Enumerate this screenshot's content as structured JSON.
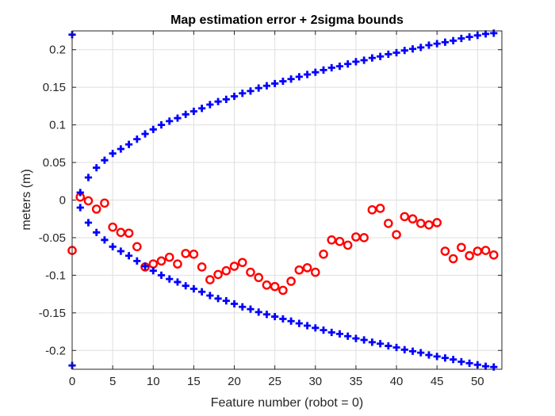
{
  "chart_data": {
    "type": "scatter",
    "title": "Map estimation error + 2sigma bounds",
    "xlabel": "Feature number (robot = 0)",
    "ylabel": "meters (m)",
    "xlim": [
      0,
      53
    ],
    "ylim": [
      -0.225,
      0.225
    ],
    "grid": true,
    "x_ticks": [
      0,
      5,
      10,
      15,
      20,
      25,
      30,
      35,
      40,
      45,
      50
    ],
    "y_ticks": [
      -0.2,
      -0.15,
      -0.1,
      -0.05,
      0,
      0.05,
      0.1,
      0.15,
      0.2
    ],
    "x_tick_labels": [
      "0",
      "5",
      "10",
      "15",
      "20",
      "25",
      "30",
      "35",
      "40",
      "45",
      "50"
    ],
    "y_tick_labels": [
      "-0.2",
      "-0.15",
      "-0.1",
      "-0.05",
      "0",
      "0.05",
      "0.1",
      "0.15",
      "0.2"
    ],
    "series": [
      {
        "marker": "circle",
        "color": "#ff0000",
        "x": [
          0,
          1,
          2,
          3,
          4,
          5,
          6,
          7,
          8,
          9,
          10,
          11,
          12,
          13,
          14,
          15,
          16,
          17,
          18,
          19,
          20,
          21,
          22,
          23,
          24,
          25,
          26,
          27,
          28,
          29,
          30,
          31,
          32,
          33,
          34,
          35,
          36,
          37,
          38,
          39,
          40,
          41,
          42,
          43,
          44,
          45,
          46,
          47,
          48,
          49,
          50,
          51,
          52
        ],
        "y": [
          -0.067,
          0.004,
          -0.001,
          -0.012,
          -0.004,
          -0.036,
          -0.043,
          -0.044,
          -0.062,
          -0.089,
          -0.085,
          -0.081,
          -0.076,
          -0.085,
          -0.071,
          -0.072,
          -0.089,
          -0.106,
          -0.099,
          -0.094,
          -0.088,
          -0.083,
          -0.096,
          -0.103,
          -0.113,
          -0.115,
          -0.12,
          -0.108,
          -0.093,
          -0.09,
          -0.096,
          -0.072,
          -0.053,
          -0.055,
          -0.06,
          -0.049,
          -0.05,
          -0.013,
          -0.011,
          -0.031,
          -0.046,
          -0.022,
          -0.025,
          -0.031,
          -0.033,
          -0.03,
          -0.068,
          -0.078,
          -0.063,
          -0.074,
          -0.068,
          -0.067,
          -0.073
        ]
      },
      {
        "marker": "plus",
        "color": "#0000ff",
        "x": [
          0,
          1,
          2,
          3,
          4,
          5,
          6,
          7,
          8,
          9,
          10,
          11,
          12,
          13,
          14,
          15,
          16,
          17,
          18,
          19,
          20,
          21,
          22,
          23,
          24,
          25,
          26,
          27,
          28,
          29,
          30,
          31,
          32,
          33,
          34,
          35,
          36,
          37,
          38,
          39,
          40,
          41,
          42,
          43,
          44,
          45,
          46,
          47,
          48,
          49,
          50,
          51,
          52
        ],
        "y": [
          0.22,
          0.01,
          0.03,
          0.043,
          0.053,
          0.062,
          0.068,
          0.074,
          0.081,
          0.088,
          0.094,
          0.1,
          0.105,
          0.109,
          0.114,
          0.118,
          0.122,
          0.127,
          0.131,
          0.134,
          0.138,
          0.142,
          0.145,
          0.149,
          0.152,
          0.155,
          0.158,
          0.161,
          0.164,
          0.167,
          0.17,
          0.173,
          0.176,
          0.178,
          0.181,
          0.184,
          0.186,
          0.189,
          0.191,
          0.194,
          0.196,
          0.199,
          0.201,
          0.203,
          0.206,
          0.208,
          0.21,
          0.212,
          0.215,
          0.217,
          0.219,
          0.221,
          0.222
        ]
      },
      {
        "marker": "plus",
        "color": "#0000ff",
        "x": [
          0,
          1,
          2,
          3,
          4,
          5,
          6,
          7,
          8,
          9,
          10,
          11,
          12,
          13,
          14,
          15,
          16,
          17,
          18,
          19,
          20,
          21,
          22,
          23,
          24,
          25,
          26,
          27,
          28,
          29,
          30,
          31,
          32,
          33,
          34,
          35,
          36,
          37,
          38,
          39,
          40,
          41,
          42,
          43,
          44,
          45,
          46,
          47,
          48,
          49,
          50,
          51,
          52
        ],
        "y": [
          -0.22,
          -0.01,
          -0.03,
          -0.043,
          -0.053,
          -0.062,
          -0.068,
          -0.074,
          -0.081,
          -0.088,
          -0.094,
          -0.1,
          -0.105,
          -0.109,
          -0.114,
          -0.118,
          -0.122,
          -0.127,
          -0.131,
          -0.134,
          -0.138,
          -0.142,
          -0.145,
          -0.149,
          -0.152,
          -0.155,
          -0.158,
          -0.161,
          -0.164,
          -0.167,
          -0.17,
          -0.173,
          -0.176,
          -0.178,
          -0.181,
          -0.184,
          -0.186,
          -0.189,
          -0.191,
          -0.194,
          -0.196,
          -0.199,
          -0.201,
          -0.203,
          -0.206,
          -0.208,
          -0.21,
          -0.212,
          -0.215,
          -0.217,
          -0.219,
          -0.221,
          -0.222
        ]
      }
    ]
  }
}
